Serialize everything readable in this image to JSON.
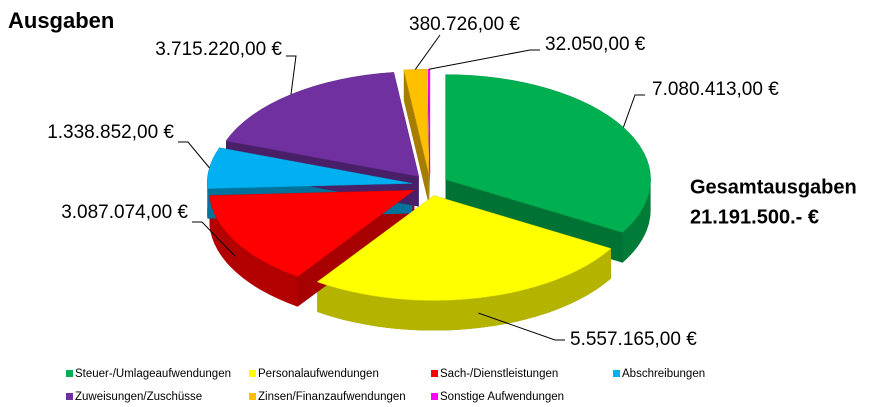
{
  "chart_data": {
    "type": "pie",
    "title": "Ausgaben",
    "annotations": [
      "Gesamtausgaben",
      "21.191.500.- €"
    ],
    "categories": [
      "Steuer-/Umlageaufwendungen",
      "Personalaufwendungen",
      "Sach-/Dienstleistungen",
      "Abschreibungen",
      "Zuweisungen/Zuschüsse",
      "Zinsen/Finanzaufwendungen",
      "Sonstige Aufwendungen"
    ],
    "values": [
      7080413,
      5557165,
      3087074,
      1338852,
      3715220,
      380726,
      32050
    ],
    "value_labels": [
      "7.080.413,00 €",
      "5.557.165,00 €",
      "3.087.074,00 €",
      "1.338.852,00 €",
      "3.715.220,00 €",
      "380.726,00 €",
      "32.050,00 €"
    ],
    "colors": [
      "#00b050",
      "#ffff00",
      "#ff0000",
      "#00b0f0",
      "#7030a0",
      "#ffc000",
      "#ff00ff"
    ],
    "legend": "bottom"
  }
}
